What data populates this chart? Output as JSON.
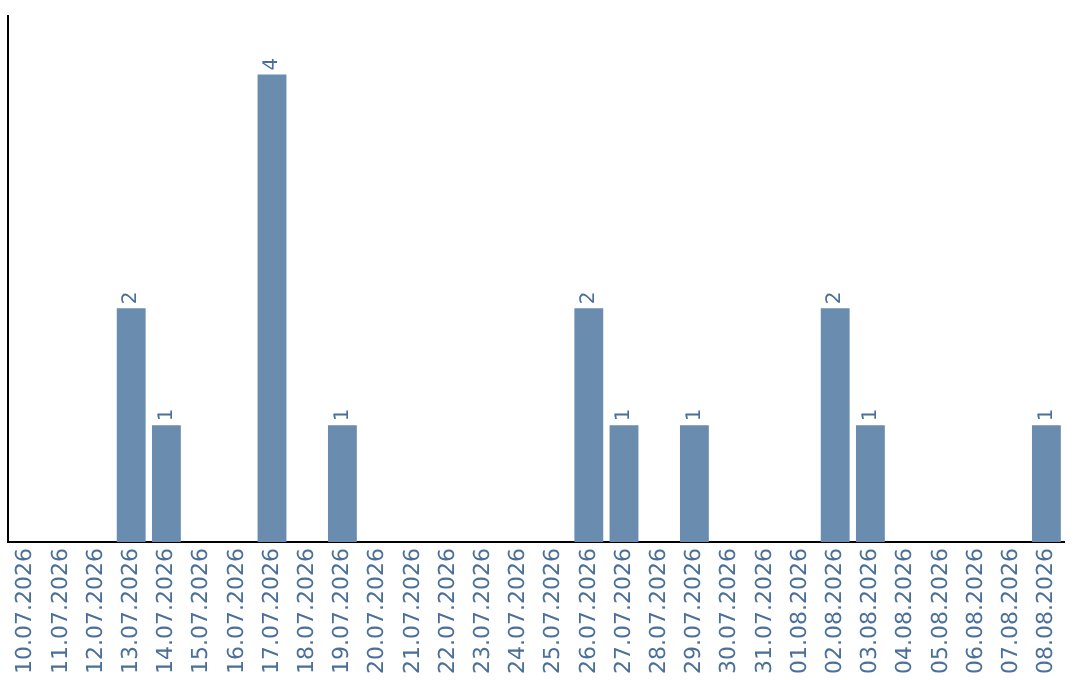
{
  "chart_data": {
    "type": "bar",
    "categories": [
      "10.07.2026",
      "11.07.2026",
      "12.07.2026",
      "13.07.2026",
      "14.07.2026",
      "15.07.2026",
      "16.07.2026",
      "17.07.2026",
      "18.07.2026",
      "19.07.2026",
      "20.07.2026",
      "21.07.2026",
      "22.07.2026",
      "23.07.2026",
      "24.07.2026",
      "25.07.2026",
      "26.07.2026",
      "27.07.2026",
      "28.07.2026",
      "29.07.2026",
      "30.07.2026",
      "31.07.2026",
      "01.08.2026",
      "02.08.2026",
      "03.08.2026",
      "04.08.2026",
      "05.08.2026",
      "06.08.2026",
      "07.08.2026",
      "08.08.2026"
    ],
    "values": [
      0,
      0,
      0,
      2,
      1,
      0,
      0,
      4,
      0,
      1,
      0,
      0,
      0,
      0,
      0,
      0,
      2,
      1,
      0,
      1,
      0,
      0,
      0,
      2,
      1,
      0,
      0,
      0,
      0,
      1
    ],
    "value_labels": [
      null,
      null,
      null,
      "2",
      "1",
      null,
      null,
      "4",
      null,
      "1",
      null,
      null,
      null,
      null,
      null,
      null,
      "2",
      "1",
      null,
      "1",
      null,
      null,
      null,
      "2",
      "1",
      null,
      null,
      null,
      null,
      "1"
    ],
    "color": "#6a8caf",
    "grid": false,
    "legend": false,
    "tick_labels": "x"
  }
}
